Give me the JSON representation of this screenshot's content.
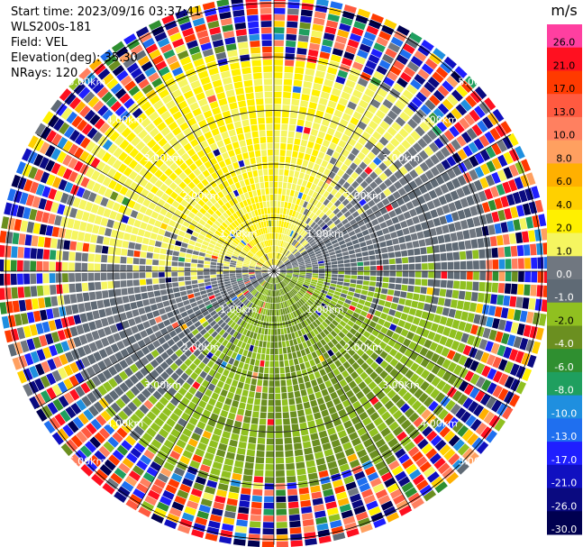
{
  "header": {
    "start_time": "Start time: 2023/09/16 03:37:41",
    "site": "WLS200s-181",
    "field": "Field: VEL",
    "elevation": "Elevation(deg): 35.30",
    "nrays": "NRays: 120"
  },
  "colorbar": {
    "unit": "m/s",
    "ticks": [
      "26.0",
      "21.0",
      "17.0",
      "13.0",
      "10.0",
      "8.0",
      "6.0",
      "4.0",
      "2.0",
      "1.0",
      "0.0",
      "-1.0",
      "-2.0",
      "-4.0",
      "-6.0",
      "-8.0",
      "-10.0",
      "-13.0",
      "-17.0",
      "-21.0",
      "-26.0",
      "-30.0"
    ],
    "colors": [
      "#ff3fa0",
      "#ff1020",
      "#ff3a00",
      "#ff5a40",
      "#ff8060",
      "#ffa060",
      "#ffb000",
      "#ffd000",
      "#fff000",
      "#f5f560",
      "#707780",
      "#5f6a75",
      "#90c020",
      "#6b8f20",
      "#2f8f30",
      "#1f9f5f",
      "#1f8fdf",
      "#1f6fef",
      "#1f1fff",
      "#1010c0",
      "#0a0a80",
      "#000050"
    ]
  },
  "chart_data": {
    "type": "heatmap",
    "projection": "polar PPI",
    "field": "VEL",
    "units": "m/s",
    "nrays": 120,
    "elevation_deg": 35.3,
    "range_rings_km": [
      1.0,
      2.0,
      3.0,
      4.0,
      5.0
    ],
    "ring_labels": [
      "1.00km",
      "2.00km",
      "3.00km",
      "4.00km",
      "5.00km"
    ],
    "colorbar_range": [
      -30.0,
      26.0
    ],
    "pattern": {
      "north_sector_velocity": 2.0,
      "south_sector_velocity": -2.0,
      "zero_line_orientation": "WSW-ENE",
      "noise_beyond_km": 4.0
    }
  }
}
